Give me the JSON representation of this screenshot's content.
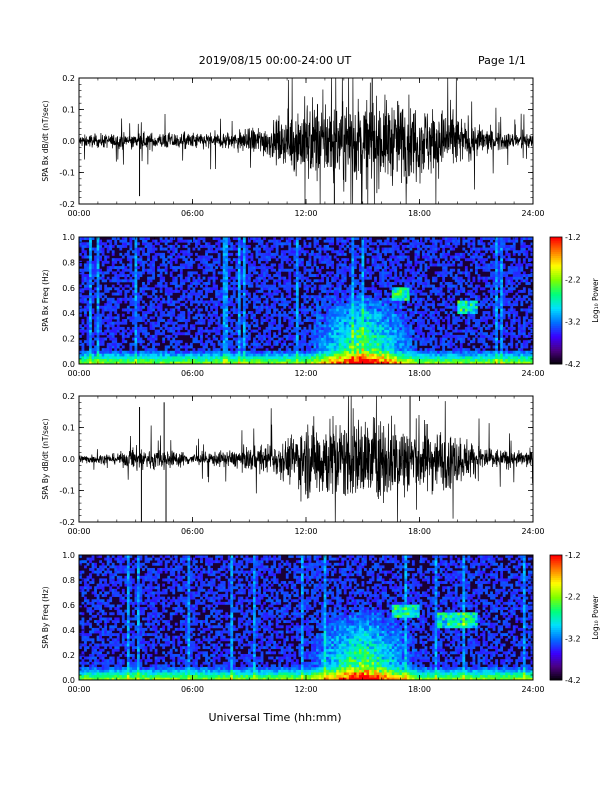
{
  "header": {
    "date_range": "2019/08/15  00:00-24:00 UT",
    "page": "Page 1/1"
  },
  "footer": {
    "xlabel": "Universal Time (hh:mm)"
  },
  "colorbar": {
    "label": "Log₁₀ Power",
    "ticks": [
      "-1.2",
      "-2.2",
      "-3.2",
      "-4.2"
    ],
    "colors": [
      "#000000",
      "#4b007f",
      "#3a00ff",
      "#0070ff",
      "#00e0ff",
      "#00ff7a",
      "#7dff00",
      "#ffff00",
      "#ff8000",
      "#ff0000"
    ]
  },
  "chart_data": [
    {
      "type": "line",
      "ylabel": "SPA Bx dB/dt (nT/sec)",
      "xticks": [
        "00:00",
        "06:00",
        "12:00",
        "18:00",
        "24:00"
      ],
      "yticks": [
        "0.2",
        "0.1",
        "0.0",
        "-0.1",
        "-0.2"
      ],
      "xlim": [
        0,
        24
      ],
      "ylim": [
        -0.2,
        0.2
      ],
      "envelope_hours": [
        0,
        2,
        4,
        6,
        8,
        10,
        11,
        12,
        13,
        14,
        15,
        16,
        17,
        18,
        19,
        20,
        21,
        22,
        23,
        24
      ],
      "envelope_amplitude": [
        0.03,
        0.035,
        0.04,
        0.04,
        0.045,
        0.08,
        0.12,
        0.2,
        0.2,
        0.2,
        0.2,
        0.2,
        0.2,
        0.18,
        0.16,
        0.12,
        0.08,
        0.05,
        0.04,
        0.04
      ],
      "spikes": [
        {
          "x": 3.2,
          "y": -0.175
        },
        {
          "x": 13.5,
          "y": -0.2
        },
        {
          "x": 15.5,
          "y": 0.2
        }
      ]
    },
    {
      "type": "heatmap",
      "ylabel": "SPA Bx Freq (Hz)",
      "xticks": [
        "00:00",
        "06:00",
        "12:00",
        "18:00",
        "24:00"
      ],
      "yticks": [
        "1.0",
        "0.8",
        "0.6",
        "0.4",
        "0.2",
        "0.0"
      ],
      "xlim": [
        0,
        24
      ],
      "ylim": [
        0,
        1.0
      ],
      "zlim": [
        -4.2,
        -1.2
      ],
      "colorbar_ticks": [
        "-1.2",
        "-2.2",
        "-3.2",
        "-4.2"
      ],
      "features": [
        {
          "kind": "low_freq_band",
          "hours": [
            0,
            24
          ],
          "freq_max": 0.05
        },
        {
          "kind": "broadband_burst",
          "hours": [
            13,
            17
          ],
          "freq_max": 0.6
        },
        {
          "kind": "narrowband_emission",
          "hours": [
            16.5,
            17.5
          ],
          "freq": 0.55
        },
        {
          "kind": "narrowband_emission",
          "hours": [
            20,
            21
          ],
          "freq": 0.45
        }
      ]
    },
    {
      "type": "line",
      "ylabel": "SPA By dB/dt (nT/sec)",
      "xticks": [
        "00:00",
        "06:00",
        "12:00",
        "18:00",
        "24:00"
      ],
      "yticks": [
        "0.2",
        "0.1",
        "0.0",
        "-0.1",
        "-0.2"
      ],
      "xlim": [
        0,
        24
      ],
      "ylim": [
        -0.2,
        0.2
      ],
      "envelope_hours": [
        0,
        2,
        3,
        4,
        5,
        6,
        8,
        10,
        11,
        12,
        13,
        14,
        15,
        16,
        17,
        18,
        19,
        20,
        21,
        22,
        23,
        24
      ],
      "envelope_amplitude": [
        0.02,
        0.025,
        0.06,
        0.05,
        0.04,
        0.03,
        0.04,
        0.07,
        0.1,
        0.18,
        0.2,
        0.2,
        0.2,
        0.2,
        0.2,
        0.18,
        0.15,
        0.12,
        0.08,
        0.05,
        0.04,
        0.04
      ],
      "spikes": [
        {
          "x": 3.2,
          "y": 0.165
        },
        {
          "x": 4.5,
          "y": 0.18
        },
        {
          "x": 3.3,
          "y": -0.2
        },
        {
          "x": 4.6,
          "y": -0.2
        },
        {
          "x": 17.5,
          "y": 0.2
        }
      ]
    },
    {
      "type": "heatmap",
      "ylabel": "SPA By Freq (Hz)",
      "xticks": [
        "00:00",
        "06:00",
        "12:00",
        "18:00",
        "24:00"
      ],
      "yticks": [
        "1.0",
        "0.8",
        "0.6",
        "0.4",
        "0.2",
        "0.0"
      ],
      "xlim": [
        0,
        24
      ],
      "ylim": [
        0,
        1.0
      ],
      "zlim": [
        -4.2,
        -1.2
      ],
      "colorbar_ticks": [
        "-1.2",
        "-2.2",
        "-3.2",
        "-4.2"
      ],
      "features": [
        {
          "kind": "low_freq_band",
          "hours": [
            0,
            24
          ],
          "freq_max": 0.05
        },
        {
          "kind": "broadband_burst",
          "hours": [
            13,
            17
          ],
          "freq_max": 0.6
        },
        {
          "kind": "narrowband_emission",
          "hours": [
            16.5,
            18
          ],
          "freq": 0.55
        },
        {
          "kind": "narrowband_emission",
          "hours": [
            19,
            21
          ],
          "freq": 0.48
        }
      ]
    }
  ]
}
